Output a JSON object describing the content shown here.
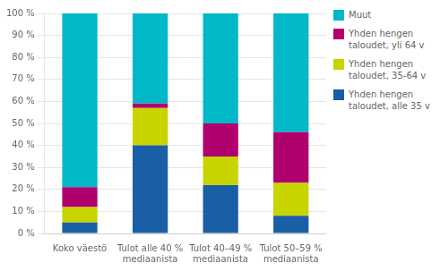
{
  "chart_data": {
    "type": "bar",
    "stacked": true,
    "categories": [
      "Koko väestö",
      "Tulot alle 40 %\nmediaanista",
      "Tulot 40–49 %\nmediaanista",
      "Tulot 50–59 %\nmediaanista"
    ],
    "series": [
      {
        "name": "Yhden hengen\ntaloudet, alle 35 v",
        "color": "#1A5EA6",
        "values": [
          5,
          40,
          22,
          8
        ]
      },
      {
        "name": "Yhden hengen\ntaloudet, 35-64 v",
        "color": "#C8D400",
        "values": [
          7,
          17,
          13,
          15
        ]
      },
      {
        "name": "Yhden hengen\ntaloudet, yli 64 v",
        "color": "#B0006E",
        "values": [
          9,
          2,
          15,
          23
        ]
      },
      {
        "name": "Muut",
        "color": "#00B8C8",
        "values": [
          79,
          41,
          50,
          54
        ]
      }
    ],
    "ylim": [
      0,
      100
    ],
    "yticks": [
      {
        "value": 0,
        "label": "0 %"
      },
      {
        "value": 10,
        "label": "10 %"
      },
      {
        "value": 20,
        "label": "20 %"
      },
      {
        "value": 30,
        "label": "30 %"
      },
      {
        "value": 40,
        "label": "40 %"
      },
      {
        "value": 50,
        "label": "50 %"
      },
      {
        "value": 60,
        "label": "60 %"
      },
      {
        "value": 70,
        "label": "70 %"
      },
      {
        "value": 80,
        "label": "80 %"
      },
      {
        "value": 90,
        "label": "90 %"
      },
      {
        "value": 100,
        "label": "100 %"
      }
    ],
    "grid": true,
    "legend": "right"
  }
}
